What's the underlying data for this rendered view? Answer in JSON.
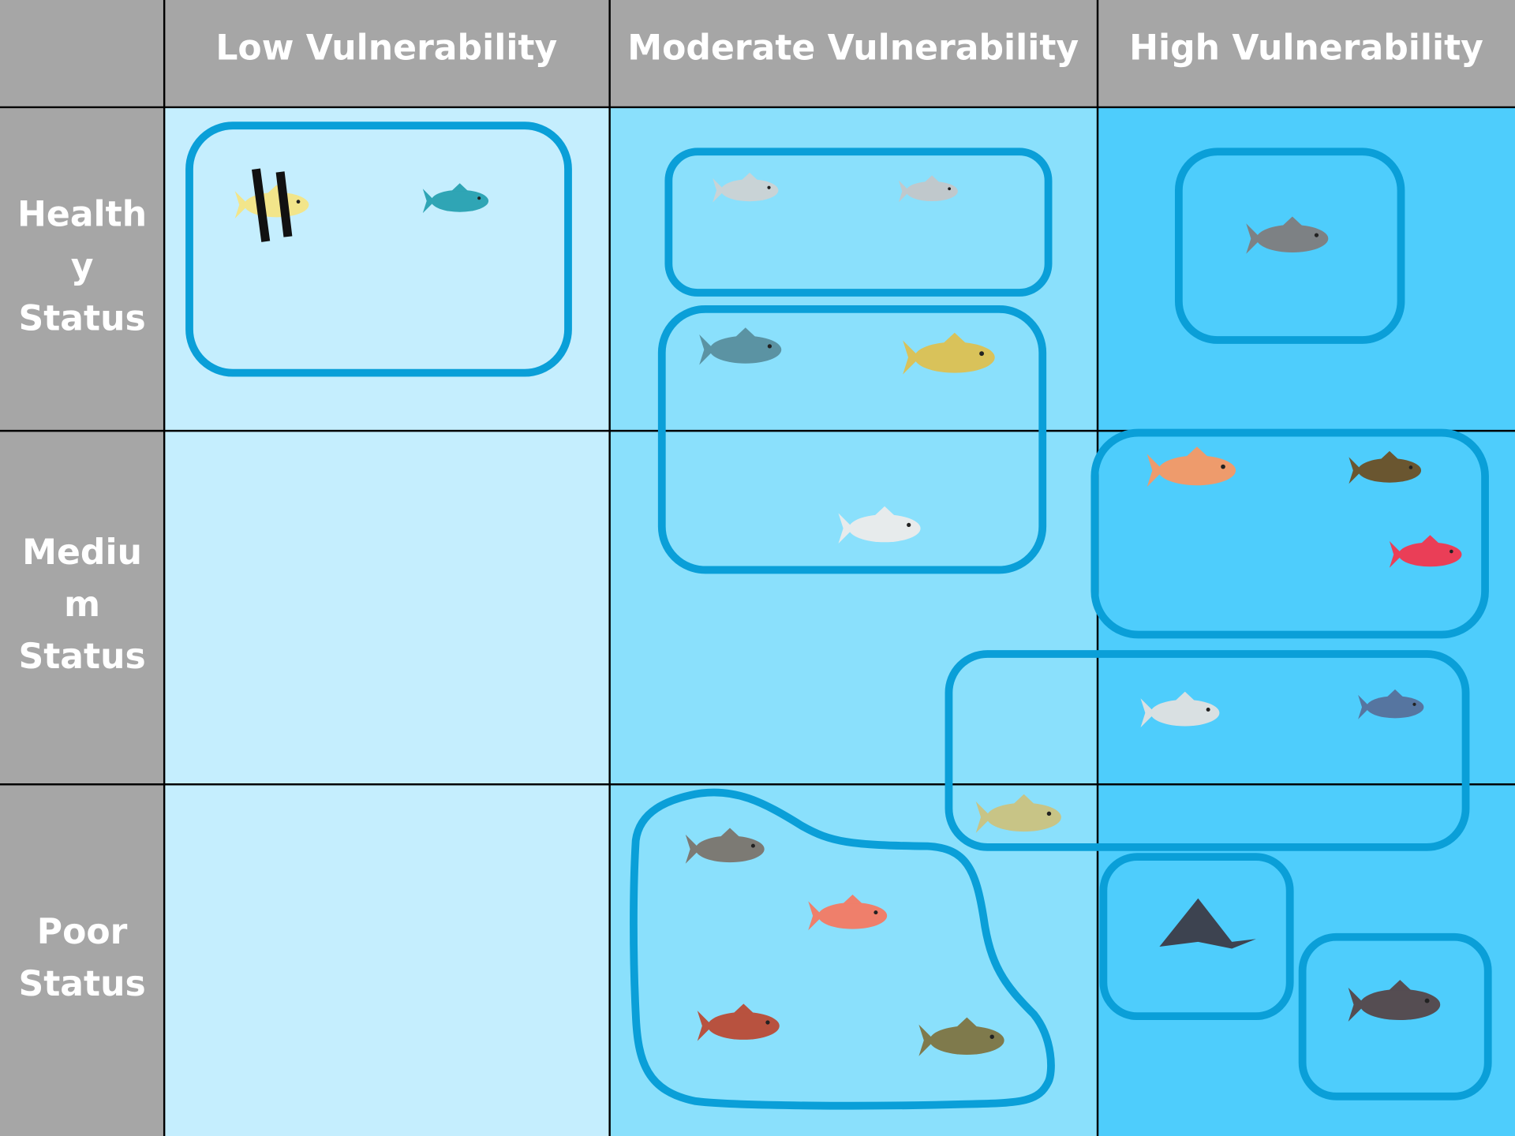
{
  "columns": [
    "Low Vulnerability",
    "Moderate Vulnerability",
    "High Vulnerability"
  ],
  "rows": [
    [
      "Health",
      "y",
      "Status"
    ],
    [
      "Mediu",
      "m",
      "Status"
    ],
    [
      "Poor",
      "Status"
    ]
  ]
}
